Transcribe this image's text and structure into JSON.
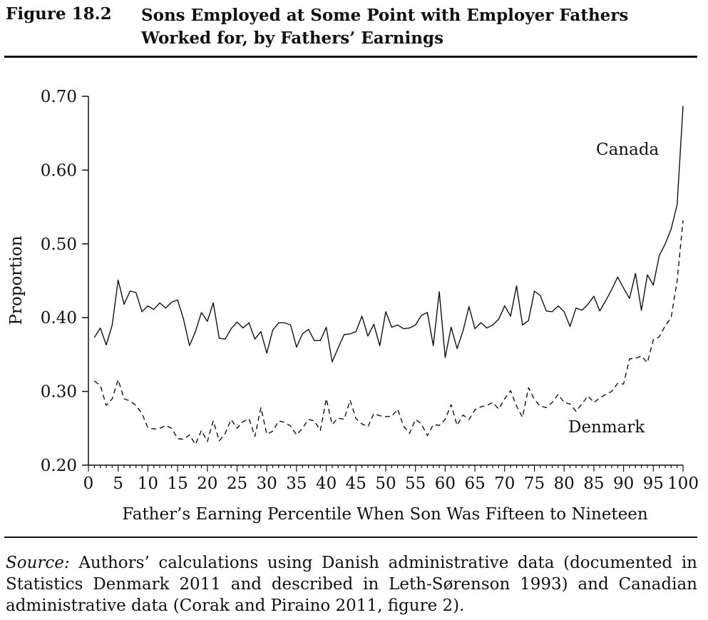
{
  "figure": {
    "label": "Figure 18.2",
    "title": "Sons Employed at Some Point with Employer Fathers Worked for, by Fathers’ Earnings"
  },
  "source": {
    "prefix": "Source:",
    "text": " Authors’ calculations using Danish administrative data (documented in Statistics Denmark 2011 and described in Leth-Sørenson 1993) and Canadian administrative data (Corak and Piraino 2011, figure 2)."
  },
  "chart_data": {
    "type": "line",
    "title": "Sons Employed at Some Point with Employer Fathers Worked for, by Fathers’ Earnings",
    "xlabel": "Father’s Earning Percentile When Son Was Fifteen to Nineteen",
    "ylabel": "Proportion",
    "xlim": [
      0,
      100
    ],
    "ylim": [
      0.2,
      0.7
    ],
    "xticks": [
      0,
      5,
      10,
      15,
      20,
      25,
      30,
      35,
      40,
      45,
      50,
      55,
      60,
      65,
      70,
      75,
      80,
      85,
      90,
      95,
      100
    ],
    "yticks": [
      "0.20",
      "0.30",
      "0.40",
      "0.50",
      "0.60",
      "0.70"
    ],
    "grid": false,
    "series": [
      {
        "name": "Canada",
        "style": "solid",
        "x": [
          1,
          2,
          3,
          4,
          5,
          6,
          7,
          8,
          9,
          10,
          11,
          12,
          13,
          14,
          15,
          16,
          17,
          18,
          19,
          20,
          21,
          22,
          23,
          24,
          25,
          26,
          27,
          28,
          29,
          30,
          31,
          32,
          33,
          34,
          35,
          36,
          37,
          38,
          39,
          40,
          41,
          42,
          43,
          44,
          45,
          46,
          47,
          48,
          49,
          50,
          51,
          52,
          53,
          54,
          55,
          56,
          57,
          58,
          59,
          60,
          61,
          62,
          63,
          64,
          65,
          66,
          67,
          68,
          69,
          70,
          71,
          72,
          73,
          74,
          75,
          76,
          77,
          78,
          79,
          80,
          81,
          82,
          83,
          84,
          85,
          86,
          87,
          88,
          89,
          90,
          91,
          92,
          93,
          94,
          95,
          96,
          97,
          98,
          99,
          100
        ],
        "values": [
          0.373,
          0.386,
          0.363,
          0.39,
          0.451,
          0.418,
          0.436,
          0.434,
          0.408,
          0.416,
          0.411,
          0.42,
          0.413,
          0.421,
          0.424,
          0.398,
          0.362,
          0.381,
          0.407,
          0.395,
          0.42,
          0.372,
          0.371,
          0.385,
          0.394,
          0.386,
          0.393,
          0.371,
          0.381,
          0.352,
          0.383,
          0.393,
          0.393,
          0.39,
          0.36,
          0.378,
          0.384,
          0.369,
          0.369,
          0.387,
          0.34,
          0.359,
          0.377,
          0.378,
          0.381,
          0.402,
          0.375,
          0.391,
          0.362,
          0.408,
          0.387,
          0.39,
          0.385,
          0.386,
          0.39,
          0.403,
          0.407,
          0.362,
          0.435,
          0.346,
          0.387,
          0.358,
          0.382,
          0.415,
          0.385,
          0.393,
          0.386,
          0.39,
          0.398,
          0.416,
          0.402,
          0.443,
          0.39,
          0.396,
          0.436,
          0.43,
          0.409,
          0.408,
          0.416,
          0.408,
          0.388,
          0.413,
          0.41,
          0.418,
          0.429,
          0.409,
          0.423,
          0.438,
          0.455,
          0.44,
          0.426,
          0.46,
          0.41,
          0.458,
          0.444,
          0.484,
          0.5,
          0.52,
          0.553,
          0.687
        ]
      },
      {
        "name": "Denmark",
        "style": "dashed",
        "x": [
          1,
          2,
          3,
          4,
          5,
          6,
          7,
          8,
          9,
          10,
          11,
          12,
          13,
          14,
          15,
          16,
          17,
          18,
          19,
          20,
          21,
          22,
          23,
          24,
          25,
          26,
          27,
          28,
          29,
          30,
          31,
          32,
          33,
          34,
          35,
          36,
          37,
          38,
          39,
          40,
          41,
          42,
          43,
          44,
          45,
          46,
          47,
          48,
          49,
          50,
          51,
          52,
          53,
          54,
          55,
          56,
          57,
          58,
          59,
          60,
          61,
          62,
          63,
          64,
          65,
          66,
          67,
          68,
          69,
          70,
          71,
          72,
          73,
          74,
          75,
          76,
          77,
          78,
          79,
          80,
          81,
          82,
          83,
          84,
          85,
          86,
          87,
          88,
          89,
          90,
          91,
          92,
          93,
          94,
          95,
          96,
          97,
          98,
          99,
          100
        ],
        "values": [
          0.314,
          0.308,
          0.281,
          0.29,
          0.316,
          0.29,
          0.287,
          0.281,
          0.27,
          0.251,
          0.249,
          0.25,
          0.254,
          0.25,
          0.236,
          0.235,
          0.241,
          0.228,
          0.247,
          0.232,
          0.26,
          0.233,
          0.243,
          0.262,
          0.25,
          0.259,
          0.263,
          0.239,
          0.278,
          0.242,
          0.246,
          0.26,
          0.258,
          0.253,
          0.241,
          0.25,
          0.262,
          0.26,
          0.247,
          0.29,
          0.255,
          0.264,
          0.262,
          0.288,
          0.263,
          0.256,
          0.252,
          0.27,
          0.267,
          0.266,
          0.266,
          0.276,
          0.253,
          0.243,
          0.262,
          0.256,
          0.24,
          0.255,
          0.254,
          0.262,
          0.282,
          0.254,
          0.268,
          0.262,
          0.275,
          0.279,
          0.281,
          0.285,
          0.276,
          0.29,
          0.301,
          0.28,
          0.265,
          0.305,
          0.289,
          0.28,
          0.278,
          0.285,
          0.296,
          0.285,
          0.283,
          0.273,
          0.283,
          0.294,
          0.285,
          0.291,
          0.296,
          0.3,
          0.311,
          0.31,
          0.344,
          0.345,
          0.348,
          0.339,
          0.37,
          0.374,
          0.389,
          0.4,
          0.45,
          0.532
        ]
      }
    ],
    "annotations": [
      {
        "text": "Canada",
        "series": "Canada"
      },
      {
        "text": "Denmark",
        "series": "Denmark"
      }
    ]
  }
}
